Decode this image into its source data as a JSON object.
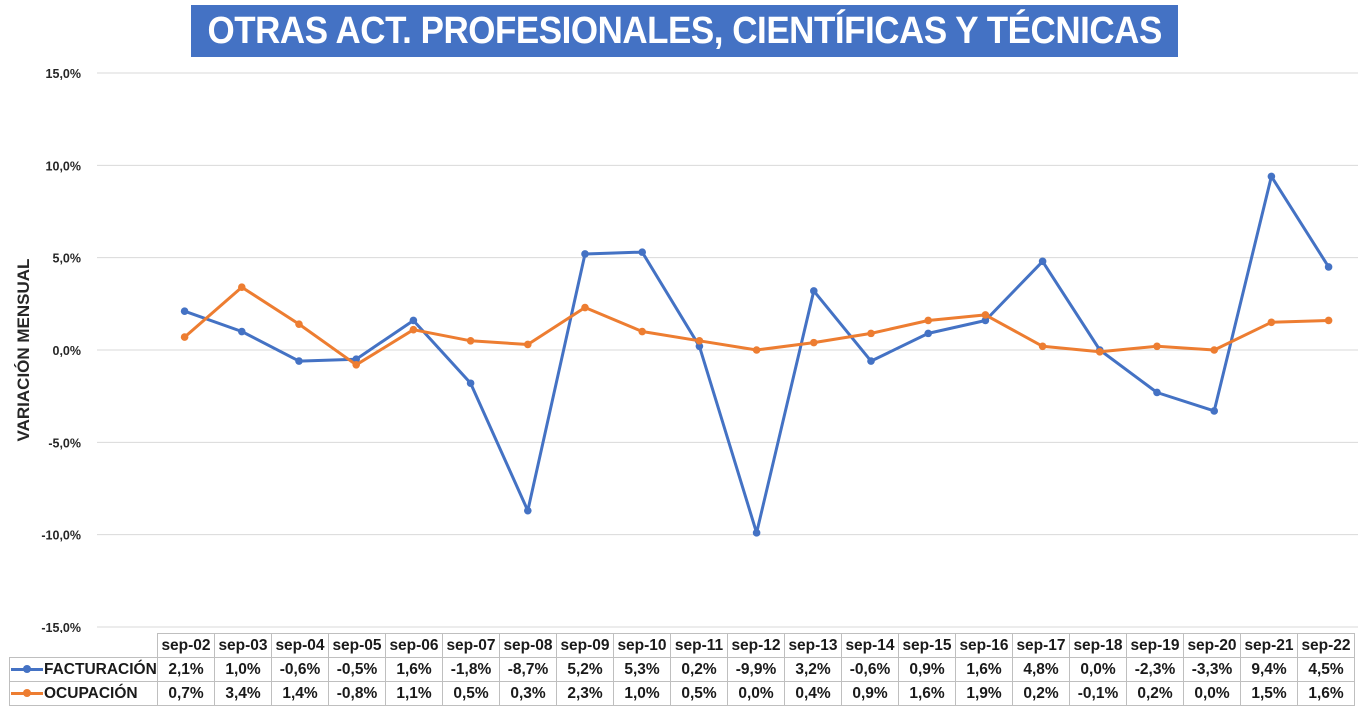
{
  "chart_data": {
    "type": "line",
    "title": "OTRAS ACT. PROFESIONALES, CIENTÍFICAS Y TÉCNICAS",
    "ylabel": "VARIACIÓN MENSUAL",
    "xlabel": "",
    "ylim": [
      -15,
      15
    ],
    "ytick_labels": [
      "15,0%",
      "10,0%",
      "5,0%",
      "0,0%",
      "-5,0%",
      "-10,0%",
      "-15,0%"
    ],
    "ytick_values": [
      15,
      10,
      5,
      0,
      -5,
      -10,
      -15
    ],
    "grid": true,
    "legend": "data-table",
    "categories": [
      "sep-02",
      "sep-03",
      "sep-04",
      "sep-05",
      "sep-06",
      "sep-07",
      "sep-08",
      "sep-09",
      "sep-10",
      "sep-11",
      "sep-12",
      "sep-13",
      "sep-14",
      "sep-15",
      "sep-16",
      "sep-17",
      "sep-18",
      "sep-19",
      "sep-20",
      "sep-21",
      "sep-22"
    ],
    "series": [
      {
        "name": "FACTURACIÓN",
        "color": "#4472c4",
        "values": [
          2.1,
          1.0,
          -0.6,
          -0.5,
          1.6,
          -1.8,
          -8.7,
          5.2,
          5.3,
          0.2,
          -9.9,
          3.2,
          -0.6,
          0.9,
          1.6,
          4.8,
          0.0,
          -2.3,
          -3.3,
          9.4,
          4.5
        ],
        "labels": [
          "2,1%",
          "1,0%",
          "-0,6%",
          "-0,5%",
          "1,6%",
          "-1,8%",
          "-8,7%",
          "5,2%",
          "5,3%",
          "0,2%",
          "-9,9%",
          "3,2%",
          "-0,6%",
          "0,9%",
          "1,6%",
          "4,8%",
          "0,0%",
          "-2,3%",
          "-3,3%",
          "9,4%",
          "4,5%"
        ]
      },
      {
        "name": "OCUPACIÓN",
        "color": "#ed7d31",
        "values": [
          0.7,
          3.4,
          1.4,
          -0.8,
          1.1,
          0.5,
          0.3,
          2.3,
          1.0,
          0.5,
          0.0,
          0.4,
          0.9,
          1.6,
          1.9,
          0.2,
          -0.1,
          0.2,
          0.0,
          1.5,
          1.6
        ],
        "labels": [
          "0,7%",
          "3,4%",
          "1,4%",
          "-0,8%",
          "1,1%",
          "0,5%",
          "0,3%",
          "2,3%",
          "1,0%",
          "0,5%",
          "0,0%",
          "0,4%",
          "0,9%",
          "1,6%",
          "1,9%",
          "0,2%",
          "-0,1%",
          "0,2%",
          "0,0%",
          "1,5%",
          "1,6%"
        ]
      }
    ]
  }
}
